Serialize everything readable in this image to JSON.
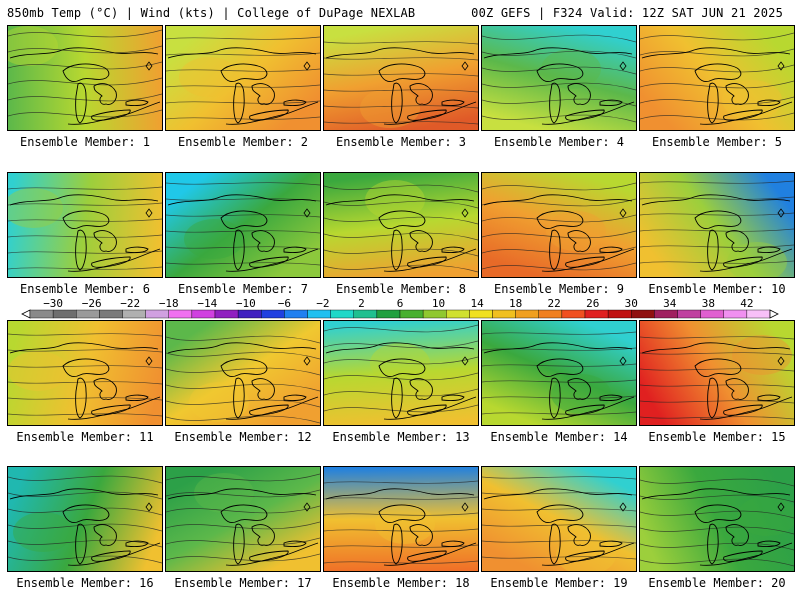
{
  "header": {
    "left": "850mb Temp (°C) | Wind (kts) | College of DuPage NEXLAB",
    "right": "00Z GEFS | F324 Valid: 12Z SAT JUN 21 2025"
  },
  "member_label_prefix": "Ensemble Member:",
  "members": [
    {
      "number": "1",
      "warm": "#f0a030",
      "mid": "#b8d830",
      "cool": "#5cb84a"
    },
    {
      "number": "2",
      "warm": "#f09030",
      "mid": "#f0c030",
      "cool": "#c8e040"
    },
    {
      "number": "3",
      "warm": "#e05a28",
      "mid": "#f0a030",
      "cool": "#c8e040"
    },
    {
      "number": "4",
      "warm": "#c8e040",
      "mid": "#5cb84a",
      "cool": "#30d0d0"
    },
    {
      "number": "5",
      "warm": "#f09030",
      "mid": "#f0c030",
      "cool": "#b8d830"
    },
    {
      "number": "6",
      "warm": "#f0c030",
      "mid": "#9ccf3c",
      "cool": "#30d0d0"
    },
    {
      "number": "7",
      "warm": "#8cc83c",
      "mid": "#3aa83e",
      "cool": "#20c8e8"
    },
    {
      "number": "8",
      "warm": "#f0a030",
      "mid": "#b8d830",
      "cool": "#3aa83e"
    },
    {
      "number": "9",
      "warm": "#e86a28",
      "mid": "#f0a030",
      "cool": "#b8d830"
    },
    {
      "number": "10",
      "warm": "#f0c030",
      "mid": "#9ccf3c",
      "cool": "#2080e0"
    },
    {
      "number": "11",
      "warm": "#f09030",
      "mid": "#f0c030",
      "cool": "#b8d830"
    },
    {
      "number": "12",
      "warm": "#f0a030",
      "mid": "#f0c830",
      "cool": "#5cb84a"
    },
    {
      "number": "13",
      "warm": "#f0c030",
      "mid": "#b8d830",
      "cool": "#30d0d0"
    },
    {
      "number": "14",
      "warm": "#b8d830",
      "mid": "#3aa83e",
      "cool": "#30d0d0"
    },
    {
      "number": "15",
      "warm": "#e02020",
      "mid": "#f09030",
      "cool": "#b8d830"
    },
    {
      "number": "16",
      "warm": "#f0c030",
      "mid": "#3aa83e",
      "cool": "#20b8b0"
    },
    {
      "number": "17",
      "warm": "#f0c030",
      "mid": "#5cb84a",
      "cool": "#2ca048"
    },
    {
      "number": "18",
      "warm": "#f07028",
      "mid": "#f0c030",
      "cool": "#2080e0"
    },
    {
      "number": "19",
      "warm": "#f09030",
      "mid": "#f0c030",
      "cool": "#30d0d0"
    },
    {
      "number": "20",
      "warm": "#9ccf3c",
      "mid": "#3aa83e",
      "cool": "#2ca048"
    }
  ],
  "colorbar": {
    "labels": [
      "−30",
      "−26",
      "−22",
      "−18",
      "−14",
      "−10",
      "−6",
      "−2",
      "2",
      "6",
      "10",
      "14",
      "18",
      "22",
      "26",
      "30",
      "34",
      "38",
      "42"
    ],
    "colors": [
      "#8a8a8a",
      "#6e6e6e",
      "#9a9a9a",
      "#7a7a7a",
      "#b0b0b0",
      "#d0a0e0",
      "#f070f0",
      "#d040e0",
      "#9020c0",
      "#4020c0",
      "#2040e0",
      "#2080f0",
      "#20c0f0",
      "#20d8c8",
      "#20c090",
      "#20a040",
      "#48b030",
      "#90c830",
      "#d0e030",
      "#f0e020",
      "#f0c020",
      "#f0a020",
      "#f08020",
      "#f05020",
      "#e02020",
      "#c01010",
      "#901010",
      "#a02060",
      "#c040a0",
      "#e060d0",
      "#f090f0",
      "#f8c0f8"
    ]
  }
}
